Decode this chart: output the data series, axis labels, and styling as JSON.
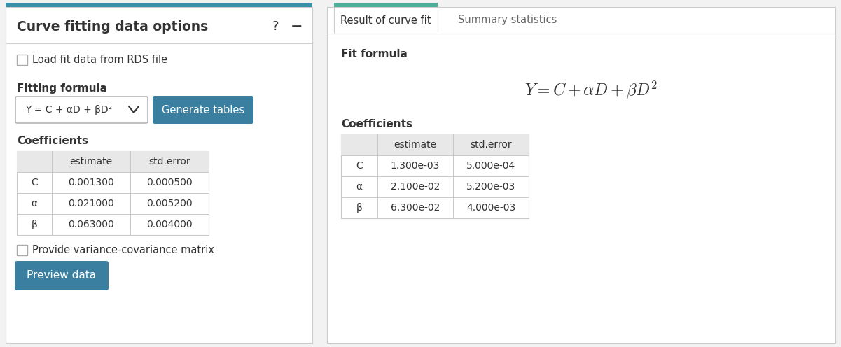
{
  "bg_color": "#f2f2f2",
  "panel_bg": "#ffffff",
  "header_color_left": "#3a8fa8",
  "header_color_right": "#4caf9a",
  "teal_btn_color": "#3a7fa0",
  "left_title": "Curve fitting data options",
  "checkbox1_label": "Load fit data from RDS file",
  "fitting_formula_label": "Fitting formula",
  "dropdown_text": "Y = C + αD + βD²",
  "generate_btn_text": "Generate tables",
  "coefficients_label": "Coefficients",
  "coeff_headers": [
    "",
    "estimate",
    "std.error"
  ],
  "coeff_rows": [
    [
      "C",
      "0.001300",
      "0.000500"
    ],
    [
      "α",
      "0.021000",
      "0.005200"
    ],
    [
      "β",
      "0.063000",
      "0.004000"
    ]
  ],
  "checkbox2_label": "Provide variance-covariance matrix",
  "preview_btn_text": "Preview data",
  "tab1_text": "Result of curve fit",
  "tab2_text": "Summary statistics",
  "fit_formula_label": "Fit formula",
  "formula_latex": "$Y = C + \\alpha D + \\beta D^2$",
  "right_coefficients_label": "Coefficients",
  "right_coeff_headers": [
    "",
    "estimate",
    "std.error"
  ],
  "right_coeff_rows": [
    [
      "C",
      "1.300e-03",
      "5.000e-04"
    ],
    [
      "α",
      "2.100e-02",
      "5.200e-03"
    ],
    [
      "β",
      "6.300e-02",
      "4.000e-03"
    ]
  ],
  "divider_color": "#d0d0d0",
  "table_header_bg": "#e8e8e8",
  "table_line_color": "#c8c8c8",
  "text_dark": "#333333",
  "text_mid": "#666666",
  "panel_border": "#cccccc",
  "top_bar_height": 6
}
